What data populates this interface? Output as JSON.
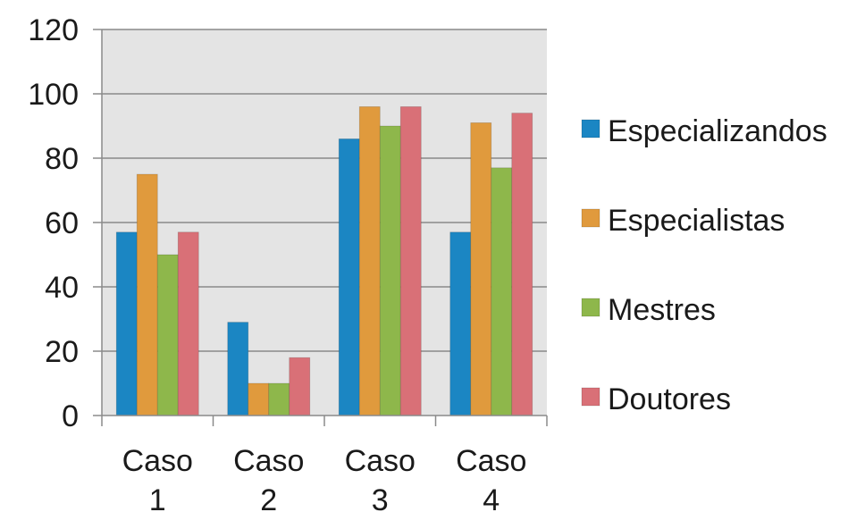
{
  "chart_data": {
    "type": "bar",
    "categories": [
      [
        "Caso",
        "1"
      ],
      [
        "Caso",
        "2"
      ],
      [
        "Caso",
        "3"
      ],
      [
        "Caso",
        "4"
      ]
    ],
    "series": [
      {
        "name": "Especializandos",
        "color": "#1b86c3",
        "values": [
          57,
          29,
          86,
          57
        ]
      },
      {
        "name": "Especialistas",
        "color": "#e09a3d",
        "values": [
          75,
          10,
          96,
          91
        ]
      },
      {
        "name": "Mestres",
        "color": "#8eb74b",
        "values": [
          50,
          10,
          90,
          77
        ]
      },
      {
        "name": "Doutores",
        "color": "#d97077",
        "values": [
          57,
          18,
          96,
          94
        ]
      }
    ],
    "ylim": [
      0,
      120
    ],
    "yticks": [
      "0",
      "20",
      "40",
      "60",
      "80",
      "100",
      "120"
    ],
    "grid": true,
    "plot_background": "#e4e4e4",
    "legend_position": "right",
    "title": "",
    "xlabel": "",
    "ylabel": ""
  }
}
